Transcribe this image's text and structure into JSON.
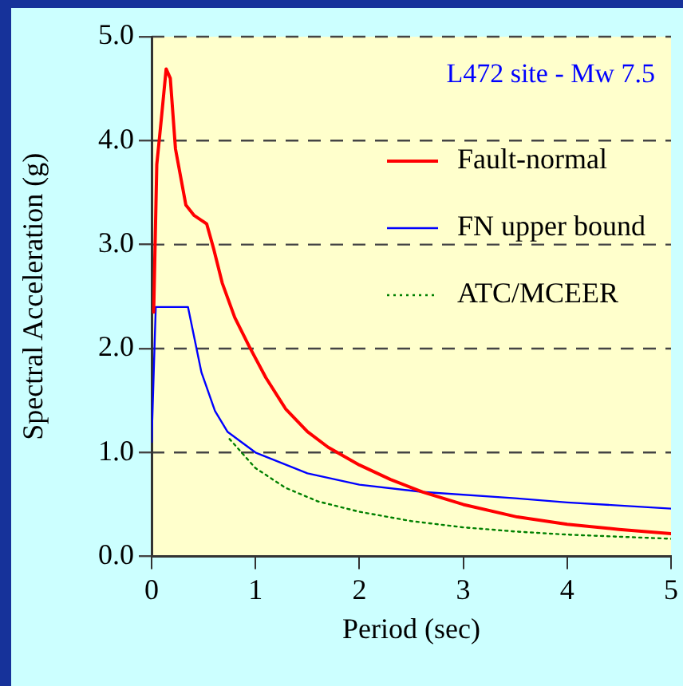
{
  "chart_data": {
    "type": "line",
    "xlabel": "Period (sec)",
    "ylabel": "Spectral Acceleration (g)",
    "annotations": [
      "L472 site - Mw 7.5"
    ],
    "xlim": [
      0,
      5
    ],
    "xticks": [
      0,
      1,
      2,
      3,
      4,
      5
    ],
    "ylim": [
      0,
      5
    ],
    "yticks": [
      {
        "value": 0,
        "label": "0.0"
      },
      {
        "value": 1,
        "label": "1.0"
      },
      {
        "value": 2,
        "label": "2.0"
      },
      {
        "value": 3,
        "label": "3.0"
      },
      {
        "value": 4,
        "label": "4.0"
      },
      {
        "value": 5,
        "label": "5.0"
      }
    ],
    "grid": "y",
    "legend": "top right",
    "marker": "none",
    "series": [
      {
        "name": "Fault-normal",
        "color": "#ff0000",
        "line_style": "solid",
        "x": [
          0.02,
          0.05,
          0.09,
          0.14,
          0.18,
          0.23,
          0.33,
          0.41,
          0.53,
          0.6,
          0.68,
          0.8,
          0.94,
          1.1,
          1.29,
          1.5,
          1.7,
          2.0,
          2.3,
          2.61,
          3.0,
          3.52,
          4.0,
          4.5,
          5.0
        ],
        "values": [
          2.35,
          3.77,
          4.17,
          4.69,
          4.6,
          3.92,
          3.38,
          3.28,
          3.2,
          2.95,
          2.63,
          2.3,
          2.02,
          1.72,
          1.42,
          1.2,
          1.05,
          0.88,
          0.74,
          0.62,
          0.5,
          0.38,
          0.31,
          0.26,
          0.22
        ]
      },
      {
        "name": "FN upper bound",
        "color": "#0000ff",
        "line_style": "solid",
        "x": [
          0,
          0.04,
          0.35,
          0.48,
          0.61,
          0.73,
          1.0,
          1.5,
          2.0,
          2.61,
          3.5,
          4.0,
          5.0
        ],
        "values": [
          1.1,
          2.4,
          2.4,
          1.77,
          1.4,
          1.2,
          1.0,
          0.8,
          0.69,
          0.62,
          0.56,
          0.52,
          0.46
        ]
      },
      {
        "name": "ATC/MCEER",
        "color": "#008000",
        "line_style": "dotted",
        "x": [
          0.75,
          1.0,
          1.29,
          1.6,
          2.0,
          2.5,
          3.0,
          3.5,
          4.0,
          4.5,
          5.0
        ],
        "values": [
          1.13,
          0.85,
          0.66,
          0.53,
          0.43,
          0.34,
          0.28,
          0.24,
          0.21,
          0.19,
          0.17
        ]
      }
    ]
  }
}
